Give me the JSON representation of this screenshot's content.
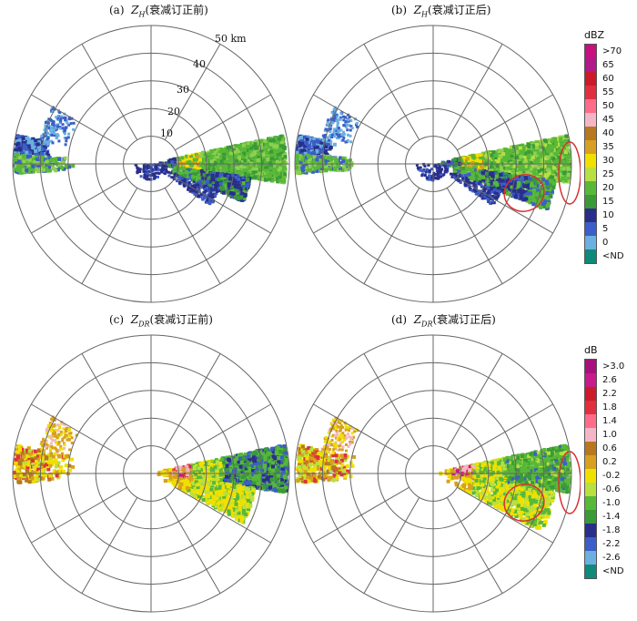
{
  "panels": [
    {
      "letter": "(a)",
      "var": "Z",
      "sub": "H",
      "note": "(衰减订正前)"
    },
    {
      "letter": "(b)",
      "var": "Z",
      "sub": "H",
      "note": "(衰减订正后)"
    },
    {
      "letter": "(c)",
      "var": "Z",
      "sub": "DR",
      "note": "(衰减订正前)"
    },
    {
      "letter": "(d)",
      "var": "Z",
      "sub": "DR",
      "note": "(衰减订正后)"
    }
  ],
  "range_labels": [
    "10",
    "20",
    "30",
    "40",
    "50 km"
  ],
  "colorbar_zh": {
    "unit": "dBZ",
    "labels": [
      ">70",
      "65",
      "60",
      "55",
      "50",
      "45",
      "40",
      "35",
      "30",
      "25",
      "20",
      "15",
      "10",
      "5",
      "0",
      "<ND"
    ],
    "colors": [
      "#c8107e",
      "#b01a8a",
      "#cc1a2a",
      "#e03040",
      "#ff6c8a",
      "#f4b6c6",
      "#b87820",
      "#d8a020",
      "#f0e000",
      "#b8e040",
      "#58b838",
      "#3a9a38",
      "#2a2e8a",
      "#3c5ec8",
      "#6ab0e0",
      "#0e8a7a"
    ]
  },
  "colorbar_zdr": {
    "unit": "dB",
    "labels": [
      ">3.0",
      "2.6",
      "2.2",
      "1.8",
      "1.4",
      "1.0",
      "0.6",
      "0.2",
      "-0.2",
      "-0.6",
      "-1.0",
      "-1.4",
      "-1.8",
      "-2.2",
      "-2.6",
      "<ND"
    ],
    "colors": [
      "#a8107e",
      "#c81a8a",
      "#cc1a2a",
      "#e03040",
      "#ff6c8a",
      "#f4b6c6",
      "#b87820",
      "#d8a020",
      "#f0e000",
      "#b8e040",
      "#58b838",
      "#3a9a38",
      "#2a2e8a",
      "#3c5ec8",
      "#6ab0e0",
      "#0e8a7a"
    ]
  }
}
